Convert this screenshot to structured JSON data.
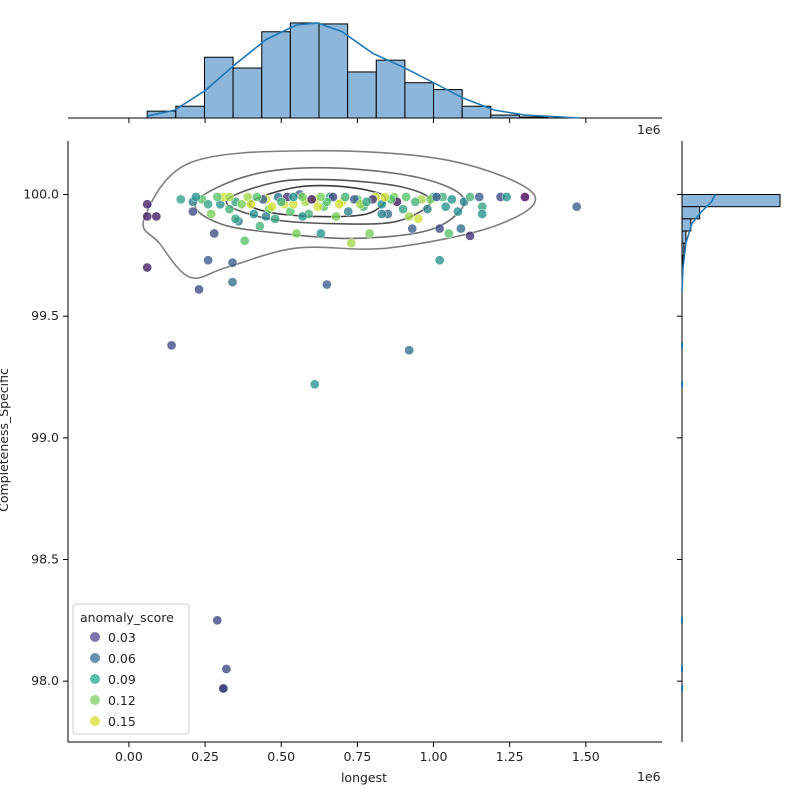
{
  "chart_data": {
    "type": "scatter",
    "xlabel": "longest",
    "ylabel": "Completeness_Specific",
    "x_offset_label": "1e6",
    "x_ticks": [
      0.0,
      0.25,
      0.5,
      0.75,
      1.0,
      1.25,
      1.5
    ],
    "x_tick_labels": [
      "0.00",
      "0.25",
      "0.50",
      "0.75",
      "1.00",
      "1.25",
      "1.50"
    ],
    "y_ticks": [
      98.0,
      98.5,
      99.0,
      99.5,
      100.0
    ],
    "y_tick_labels": [
      "98.0",
      "98.5",
      "99.0",
      "99.5",
      "100.0"
    ],
    "xlim": [
      -0.2,
      1.75
    ],
    "ylim": [
      97.75,
      100.22
    ],
    "grid": false,
    "legend": {
      "title": "anomaly_score",
      "placement": "lower-left",
      "entries": [
        {
          "label": "0.03",
          "color": "#6a5d9c"
        },
        {
          "label": "0.06",
          "color": "#4d7fa0"
        },
        {
          "label": "0.09",
          "color": "#3bb39b"
        },
        {
          "label": "0.12",
          "color": "#8ed377"
        },
        {
          "label": "0.15",
          "color": "#dde346"
        }
      ]
    },
    "points": [
      {
        "x": 0.06,
        "y": 99.96,
        "c": 0.03
      },
      {
        "x": 0.06,
        "y": 99.91,
        "c": 0.03
      },
      {
        "x": 0.09,
        "y": 99.91,
        "c": 0.03
      },
      {
        "x": 0.06,
        "y": 99.7,
        "c": 0.03
      },
      {
        "x": 0.14,
        "y": 99.38,
        "c": 0.05
      },
      {
        "x": 0.23,
        "y": 99.61,
        "c": 0.05
      },
      {
        "x": 0.26,
        "y": 99.73,
        "c": 0.06
      },
      {
        "x": 0.34,
        "y": 99.72,
        "c": 0.06
      },
      {
        "x": 0.34,
        "y": 99.64,
        "c": 0.07
      },
      {
        "x": 0.65,
        "y": 99.63,
        "c": 0.06
      },
      {
        "x": 0.61,
        "y": 99.22,
        "c": 0.09
      },
      {
        "x": 0.92,
        "y": 99.36,
        "c": 0.07
      },
      {
        "x": 1.02,
        "y": 99.73,
        "c": 0.09
      },
      {
        "x": 1.47,
        "y": 99.95,
        "c": 0.06
      },
      {
        "x": 1.3,
        "y": 99.99,
        "c": 0.02
      },
      {
        "x": 1.12,
        "y": 99.83,
        "c": 0.04
      },
      {
        "x": 0.29,
        "y": 98.25,
        "c": 0.05
      },
      {
        "x": 0.32,
        "y": 98.05,
        "c": 0.05
      },
      {
        "x": 0.31,
        "y": 97.97,
        "c": 0.03
      },
      {
        "x": 0.31,
        "y": 97.97,
        "c": 0.05
      },
      {
        "x": 0.17,
        "y": 99.98,
        "c": 0.1
      },
      {
        "x": 0.21,
        "y": 99.97,
        "c": 0.08
      },
      {
        "x": 0.21,
        "y": 99.93,
        "c": 0.05
      },
      {
        "x": 0.24,
        "y": 99.98,
        "c": 0.12
      },
      {
        "x": 0.28,
        "y": 99.84,
        "c": 0.05
      },
      {
        "x": 0.27,
        "y": 99.92,
        "c": 0.13
      },
      {
        "x": 0.3,
        "y": 99.96,
        "c": 0.09
      },
      {
        "x": 0.31,
        "y": 99.99,
        "c": 0.15
      },
      {
        "x": 0.33,
        "y": 99.94,
        "c": 0.11
      },
      {
        "x": 0.35,
        "y": 99.97,
        "c": 0.1
      },
      {
        "x": 0.36,
        "y": 99.89,
        "c": 0.08
      },
      {
        "x": 0.38,
        "y": 99.81,
        "c": 0.12
      },
      {
        "x": 0.39,
        "y": 99.99,
        "c": 0.14
      },
      {
        "x": 0.41,
        "y": 99.92,
        "c": 0.09
      },
      {
        "x": 0.43,
        "y": 99.87,
        "c": 0.11
      },
      {
        "x": 0.45,
        "y": 99.98,
        "c": 0.15
      },
      {
        "x": 0.46,
        "y": 99.94,
        "c": 0.13
      },
      {
        "x": 0.48,
        "y": 99.9,
        "c": 0.1
      },
      {
        "x": 0.49,
        "y": 99.99,
        "c": 0.07
      },
      {
        "x": 0.51,
        "y": 99.96,
        "c": 0.15
      },
      {
        "x": 0.53,
        "y": 99.93,
        "c": 0.12
      },
      {
        "x": 0.55,
        "y": 99.84,
        "c": 0.13
      },
      {
        "x": 0.56,
        "y": 100.0,
        "c": 0.06
      },
      {
        "x": 0.58,
        "y": 99.97,
        "c": 0.14
      },
      {
        "x": 0.59,
        "y": 99.92,
        "c": 0.11
      },
      {
        "x": 0.61,
        "y": 99.98,
        "c": 0.15
      },
      {
        "x": 0.63,
        "y": 99.84,
        "c": 0.09
      },
      {
        "x": 0.64,
        "y": 99.95,
        "c": 0.12
      },
      {
        "x": 0.66,
        "y": 99.99,
        "c": 0.1
      },
      {
        "x": 0.68,
        "y": 99.91,
        "c": 0.13
      },
      {
        "x": 0.7,
        "y": 99.97,
        "c": 0.15
      },
      {
        "x": 0.72,
        "y": 99.93,
        "c": 0.08
      },
      {
        "x": 0.73,
        "y": 99.8,
        "c": 0.14
      },
      {
        "x": 0.75,
        "y": 99.98,
        "c": 0.12
      },
      {
        "x": 0.77,
        "y": 99.95,
        "c": 0.11
      },
      {
        "x": 0.79,
        "y": 99.84,
        "c": 0.13
      },
      {
        "x": 0.81,
        "y": 99.99,
        "c": 0.15
      },
      {
        "x": 0.83,
        "y": 99.96,
        "c": 0.09
      },
      {
        "x": 0.85,
        "y": 99.92,
        "c": 0.07
      },
      {
        "x": 0.87,
        "y": 99.99,
        "c": 0.13
      },
      {
        "x": 0.88,
        "y": 99.97,
        "c": 0.03
      },
      {
        "x": 0.9,
        "y": 99.94,
        "c": 0.1
      },
      {
        "x": 0.91,
        "y": 99.99,
        "c": 0.12
      },
      {
        "x": 0.93,
        "y": 99.86,
        "c": 0.06
      },
      {
        "x": 0.95,
        "y": 99.9,
        "c": 0.15
      },
      {
        "x": 0.96,
        "y": 99.98,
        "c": 0.14
      },
      {
        "x": 0.98,
        "y": 99.94,
        "c": 0.08
      },
      {
        "x": 1.0,
        "y": 99.99,
        "c": 0.1
      },
      {
        "x": 1.02,
        "y": 99.86,
        "c": 0.05
      },
      {
        "x": 1.03,
        "y": 99.99,
        "c": 0.11
      },
      {
        "x": 1.04,
        "y": 99.95,
        "c": 0.09
      },
      {
        "x": 1.05,
        "y": 99.84,
        "c": 0.12
      },
      {
        "x": 1.08,
        "y": 99.93,
        "c": 0.09
      },
      {
        "x": 1.09,
        "y": 99.86,
        "c": 0.07
      },
      {
        "x": 1.1,
        "y": 99.97,
        "c": 0.08
      },
      {
        "x": 1.12,
        "y": 99.99,
        "c": 0.11
      },
      {
        "x": 1.15,
        "y": 99.99,
        "c": 0.06
      },
      {
        "x": 1.16,
        "y": 99.95,
        "c": 0.1
      },
      {
        "x": 1.16,
        "y": 99.92,
        "c": 0.09
      },
      {
        "x": 1.22,
        "y": 99.99,
        "c": 0.05
      },
      {
        "x": 1.24,
        "y": 99.99,
        "c": 0.09
      },
      {
        "x": 0.44,
        "y": 99.98,
        "c": 0.06
      },
      {
        "x": 0.52,
        "y": 99.99,
        "c": 0.04
      },
      {
        "x": 0.6,
        "y": 99.98,
        "c": 0.03
      },
      {
        "x": 0.67,
        "y": 99.99,
        "c": 0.05
      },
      {
        "x": 0.74,
        "y": 99.98,
        "c": 0.06
      },
      {
        "x": 0.8,
        "y": 99.98,
        "c": 0.04
      },
      {
        "x": 0.4,
        "y": 99.96,
        "c": 0.15
      },
      {
        "x": 0.47,
        "y": 99.95,
        "c": 0.15
      },
      {
        "x": 0.54,
        "y": 99.96,
        "c": 0.15
      },
      {
        "x": 0.62,
        "y": 99.95,
        "c": 0.15
      },
      {
        "x": 0.69,
        "y": 99.96,
        "c": 0.15
      },
      {
        "x": 0.76,
        "y": 99.96,
        "c": 0.14
      },
      {
        "x": 0.33,
        "y": 99.99,
        "c": 0.14
      },
      {
        "x": 0.37,
        "y": 99.96,
        "c": 0.13
      },
      {
        "x": 0.42,
        "y": 99.99,
        "c": 0.12
      },
      {
        "x": 0.5,
        "y": 99.97,
        "c": 0.11
      },
      {
        "x": 0.57,
        "y": 99.99,
        "c": 0.13
      },
      {
        "x": 0.65,
        "y": 99.97,
        "c": 0.12
      },
      {
        "x": 0.71,
        "y": 99.99,
        "c": 0.11
      },
      {
        "x": 0.78,
        "y": 99.97,
        "c": 0.1
      },
      {
        "x": 0.86,
        "y": 99.98,
        "c": 0.12
      },
      {
        "x": 0.94,
        "y": 99.97,
        "c": 0.11
      },
      {
        "x": 0.99,
        "y": 99.98,
        "c": 0.13
      },
      {
        "x": 1.06,
        "y": 99.98,
        "c": 0.09
      },
      {
        "x": 0.29,
        "y": 99.99,
        "c": 0.12
      },
      {
        "x": 0.26,
        "y": 99.96,
        "c": 0.1
      },
      {
        "x": 0.22,
        "y": 99.99,
        "c": 0.09
      },
      {
        "x": 0.35,
        "y": 99.9,
        "c": 0.1
      },
      {
        "x": 0.45,
        "y": 99.91,
        "c": 0.08
      },
      {
        "x": 0.57,
        "y": 99.91,
        "c": 0.09
      },
      {
        "x": 0.83,
        "y": 99.92,
        "c": 0.08
      },
      {
        "x": 0.92,
        "y": 99.91,
        "c": 0.14
      },
      {
        "x": 1.01,
        "y": 99.99,
        "c": 0.06
      },
      {
        "x": 0.54,
        "y": 99.99,
        "c": 0.09
      },
      {
        "x": 0.63,
        "y": 99.99,
        "c": 0.13
      },
      {
        "x": 0.84,
        "y": 99.99,
        "c": 0.15
      }
    ],
    "top_histogram": {
      "bin_start": 0.06,
      "bin_width": 0.094,
      "heights": [
        7,
        12,
        62,
        51,
        88,
        97,
        96,
        47,
        59,
        36,
        29,
        12,
        3,
        1
      ],
      "kde": [
        [
          0.06,
          2
        ],
        [
          0.15,
          8
        ],
        [
          0.25,
          28
        ],
        [
          0.35,
          55
        ],
        [
          0.45,
          80
        ],
        [
          0.55,
          95
        ],
        [
          0.62,
          97
        ],
        [
          0.7,
          88
        ],
        [
          0.8,
          66
        ],
        [
          0.9,
          52
        ],
        [
          1.0,
          36
        ],
        [
          1.1,
          20
        ],
        [
          1.2,
          8
        ],
        [
          1.3,
          3
        ],
        [
          1.48,
          0
        ]
      ]
    },
    "right_histogram": {
      "bins": [
        {
          "y0": 99.95,
          "y1": 100.0,
          "v": 100
        },
        {
          "y0": 99.9,
          "y1": 99.95,
          "v": 18
        },
        {
          "y0": 99.85,
          "y1": 99.9,
          "v": 9
        },
        {
          "y0": 99.8,
          "y1": 99.85,
          "v": 4
        },
        {
          "y0": 99.75,
          "y1": 99.8,
          "v": 2
        },
        {
          "y0": 99.7,
          "y1": 99.75,
          "v": 1
        }
      ],
      "kde": [
        [
          100.0,
          34
        ],
        [
          99.97,
          30
        ],
        [
          99.93,
          20
        ],
        [
          99.88,
          10
        ],
        [
          99.8,
          4
        ],
        [
          99.7,
          1
        ],
        [
          99.6,
          0
        ]
      ]
    },
    "contours": [
      [
        [
          0.05,
          99.9
        ],
        [
          0.2,
          100.13
        ],
        [
          0.6,
          100.18
        ],
        [
          1.05,
          100.14
        ],
        [
          1.33,
          100.0
        ],
        [
          1.2,
          99.87
        ],
        [
          0.85,
          99.78
        ],
        [
          0.55,
          99.78
        ],
        [
          0.32,
          99.7
        ],
        [
          0.2,
          99.66
        ],
        [
          0.1,
          99.8
        ]
      ],
      [
        [
          0.22,
          99.97
        ],
        [
          0.4,
          100.08
        ],
        [
          0.65,
          100.11
        ],
        [
          0.95,
          100.07
        ],
        [
          1.1,
          99.98
        ],
        [
          1.0,
          99.86
        ],
        [
          0.75,
          99.82
        ],
        [
          0.5,
          99.84
        ],
        [
          0.3,
          99.88
        ]
      ],
      [
        [
          0.32,
          99.97
        ],
        [
          0.48,
          100.05
        ],
        [
          0.68,
          100.06
        ],
        [
          0.9,
          100.03
        ],
        [
          0.99,
          99.97
        ],
        [
          0.88,
          99.89
        ],
        [
          0.68,
          99.88
        ],
        [
          0.46,
          99.9
        ]
      ],
      [
        [
          0.4,
          99.97
        ],
        [
          0.55,
          100.03
        ],
        [
          0.72,
          100.03
        ],
        [
          0.84,
          99.99
        ],
        [
          0.78,
          99.92
        ],
        [
          0.6,
          99.91
        ],
        [
          0.45,
          99.93
        ]
      ]
    ]
  }
}
